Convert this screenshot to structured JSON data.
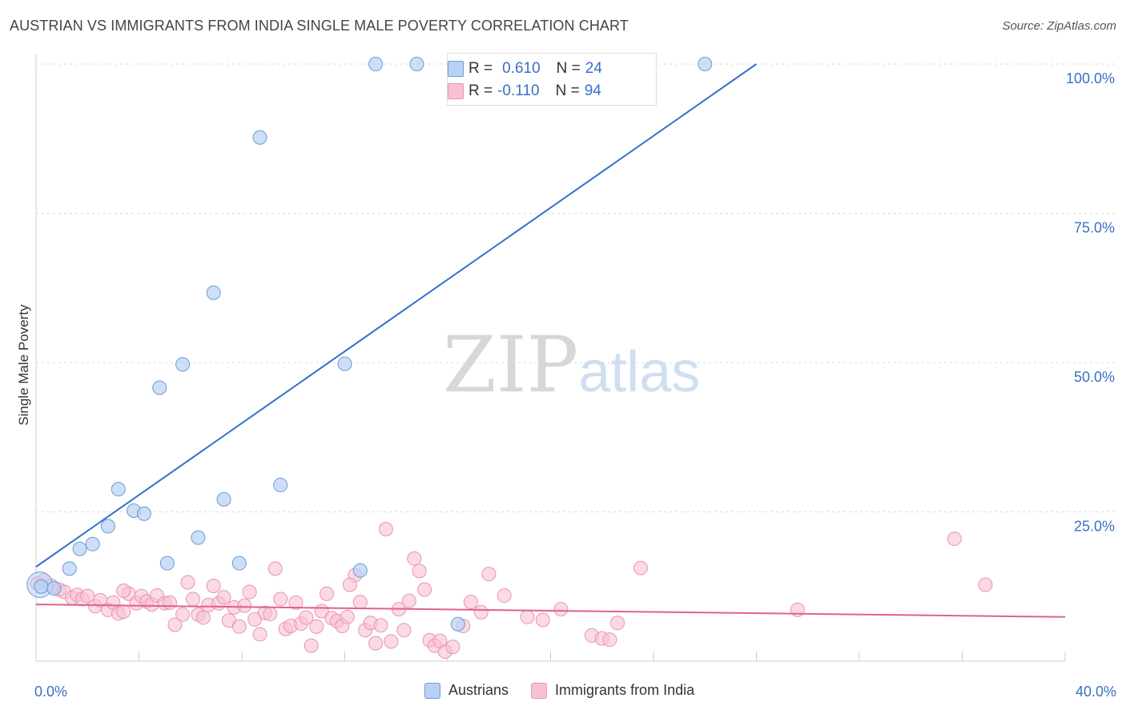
{
  "title": "AUSTRIAN VS IMMIGRANTS FROM INDIA SINGLE MALE POVERTY CORRELATION CHART",
  "source": "Source: ZipAtlas.com",
  "watermark": {
    "part1": "ZIP",
    "part2": "atlas"
  },
  "stats": {
    "austrians": {
      "r_label": "R =",
      "r_value": "0.610",
      "n_label": "N =",
      "n_value": "24"
    },
    "india": {
      "r_label": "R =",
      "r_value": "-0.110",
      "n_label": "N =",
      "n_value": "94"
    }
  },
  "legend": {
    "austrians": "Austrians",
    "india": "Immigrants from India"
  },
  "colors": {
    "blue_fill": "#b8d2f4",
    "blue_stroke": "#6b9bd8",
    "blue_line": "#2f73c9",
    "pink_fill": "#f8c2d2",
    "pink_stroke": "#e994b0",
    "pink_line": "#e0608e",
    "tick_label": "#3b6fc4"
  },
  "chart_data": {
    "type": "scatter",
    "xlabel": "",
    "ylabel": "Single Male Poverty",
    "xlim": [
      0,
      40
    ],
    "ylim": [
      0,
      100
    ],
    "x_tick_labels": [
      "0.0%",
      "40.0%"
    ],
    "y_tick_labels": [
      "25.0%",
      "50.0%",
      "75.0%",
      "100.0%"
    ],
    "y_ticks": [
      25,
      50,
      75,
      100
    ],
    "x_minor_ticks": [
      0,
      4,
      8,
      12,
      16,
      20,
      24,
      28,
      32,
      36,
      40
    ],
    "grid": true,
    "legend_position": "bottom",
    "series": [
      {
        "name": "Austrians",
        "points": [
          [
            0.2,
            12.5
          ],
          [
            0.7,
            12.2
          ],
          [
            1.3,
            15.5
          ],
          [
            1.7,
            18.8
          ],
          [
            2.2,
            19.6
          ],
          [
            2.8,
            22.6
          ],
          [
            3.2,
            28.8
          ],
          [
            3.8,
            25.2
          ],
          [
            4.2,
            24.7
          ],
          [
            4.8,
            45.8
          ],
          [
            5.1,
            16.4
          ],
          [
            5.7,
            49.7
          ],
          [
            6.3,
            20.7
          ],
          [
            6.9,
            61.7
          ],
          [
            7.3,
            27.1
          ],
          [
            7.9,
            16.4
          ],
          [
            8.7,
            87.7
          ],
          [
            9.5,
            29.5
          ],
          [
            12.0,
            49.8
          ],
          [
            12.6,
            15.2
          ],
          [
            13.2,
            100.0
          ],
          [
            14.8,
            100.0
          ],
          [
            16.4,
            6.2
          ],
          [
            26.0,
            100.0
          ]
        ],
        "trend": {
          "x": [
            0,
            28.0
          ],
          "y": [
            15.8,
            100.0
          ]
        }
      },
      {
        "name": "Immigrants from India",
        "points": [
          [
            0.3,
            13.5
          ],
          [
            0.6,
            12.6
          ],
          [
            0.9,
            12.0
          ],
          [
            1.1,
            11.6
          ],
          [
            1.4,
            10.6
          ],
          [
            1.6,
            11.1
          ],
          [
            1.8,
            10.4
          ],
          [
            2.0,
            10.9
          ],
          [
            2.3,
            9.2
          ],
          [
            2.5,
            10.2
          ],
          [
            2.8,
            8.6
          ],
          [
            3.0,
            9.8
          ],
          [
            3.2,
            8.0
          ],
          [
            3.4,
            8.3
          ],
          [
            3.6,
            11.3
          ],
          [
            3.9,
            9.7
          ],
          [
            4.1,
            10.9
          ],
          [
            4.3,
            10.0
          ],
          [
            4.5,
            9.5
          ],
          [
            4.7,
            11.0
          ],
          [
            5.0,
            9.7
          ],
          [
            5.2,
            9.8
          ],
          [
            5.4,
            6.1
          ],
          [
            5.7,
            7.8
          ],
          [
            5.9,
            13.2
          ],
          [
            6.1,
            10.4
          ],
          [
            6.3,
            7.8
          ],
          [
            6.5,
            7.3
          ],
          [
            6.7,
            9.4
          ],
          [
            6.9,
            12.6
          ],
          [
            7.1,
            9.7
          ],
          [
            7.3,
            10.7
          ],
          [
            7.5,
            6.8
          ],
          [
            7.7,
            9.0
          ],
          [
            7.9,
            5.8
          ],
          [
            8.1,
            9.3
          ],
          [
            8.3,
            11.6
          ],
          [
            8.5,
            7.0
          ],
          [
            8.7,
            4.5
          ],
          [
            8.9,
            8.1
          ],
          [
            9.1,
            7.9
          ],
          [
            9.3,
            15.5
          ],
          [
            9.5,
            10.4
          ],
          [
            9.7,
            5.4
          ],
          [
            9.9,
            5.9
          ],
          [
            10.1,
            9.8
          ],
          [
            10.3,
            6.3
          ],
          [
            10.5,
            7.3
          ],
          [
            10.7,
            2.6
          ],
          [
            10.9,
            5.8
          ],
          [
            11.1,
            8.4
          ],
          [
            11.3,
            11.3
          ],
          [
            11.5,
            7.2
          ],
          [
            11.7,
            6.7
          ],
          [
            11.9,
            5.9
          ],
          [
            12.1,
            7.4
          ],
          [
            12.4,
            14.4
          ],
          [
            12.6,
            9.9
          ],
          [
            12.8,
            5.2
          ],
          [
            13.0,
            6.4
          ],
          [
            13.2,
            3.0
          ],
          [
            13.4,
            6.0
          ],
          [
            13.6,
            22.1
          ],
          [
            13.8,
            3.3
          ],
          [
            14.1,
            8.7
          ],
          [
            14.3,
            5.2
          ],
          [
            14.5,
            10.1
          ],
          [
            14.7,
            17.2
          ],
          [
            14.9,
            15.1
          ],
          [
            15.1,
            12.0
          ],
          [
            15.3,
            3.5
          ],
          [
            15.5,
            2.6
          ],
          [
            15.7,
            3.4
          ],
          [
            15.9,
            1.6
          ],
          [
            16.2,
            2.4
          ],
          [
            16.6,
            5.9
          ],
          [
            16.9,
            9.9
          ],
          [
            17.3,
            8.2
          ],
          [
            17.6,
            14.6
          ],
          [
            18.2,
            11.0
          ],
          [
            19.1,
            7.4
          ],
          [
            19.7,
            6.9
          ],
          [
            20.4,
            8.7
          ],
          [
            21.6,
            4.3
          ],
          [
            22.0,
            3.8
          ],
          [
            22.6,
            6.4
          ],
          [
            23.5,
            15.6
          ],
          [
            29.6,
            8.6
          ],
          [
            35.7,
            20.5
          ],
          [
            36.9,
            12.8
          ],
          [
            0.05,
            13.0
          ],
          [
            3.4,
            11.8
          ],
          [
            12.2,
            12.8
          ],
          [
            22.3,
            3.6
          ]
        ],
        "trend": {
          "x": [
            0,
            40
          ],
          "y": [
            9.5,
            7.4
          ]
        }
      }
    ]
  }
}
